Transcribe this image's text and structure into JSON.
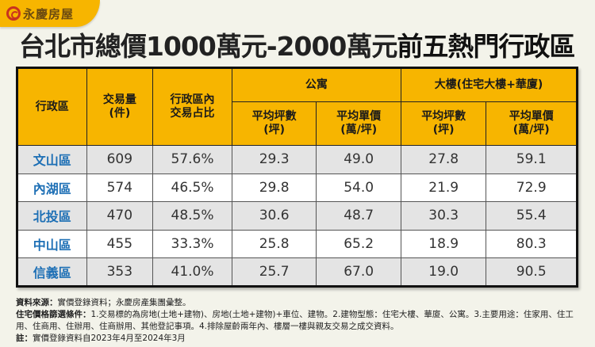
{
  "brand": {
    "name": "永慶房屋",
    "accent": "#f7b500"
  },
  "title": {
    "normal": "台北市總價1000萬元-2000萬元",
    "bold": "前五熱門行政區"
  },
  "table": {
    "headers": {
      "district": "行政區",
      "volume": [
        "交易量",
        "(件)"
      ],
      "share": [
        "行政區內",
        "交易占比"
      ],
      "group_apartment": "公寓",
      "group_building": "大樓(住宅大樓+華廈)",
      "avg_area": [
        "平均坪數",
        "(坪)"
      ],
      "avg_price": [
        "平均單價",
        "(萬/坪)"
      ]
    },
    "rows": [
      {
        "district": "文山區",
        "volume": "609",
        "share": "57.6%",
        "apt_area": "29.3",
        "apt_price": "49.0",
        "bld_area": "27.8",
        "bld_price": "59.1"
      },
      {
        "district": "內湖區",
        "volume": "574",
        "share": "46.5%",
        "apt_area": "29.8",
        "apt_price": "54.0",
        "bld_area": "21.9",
        "bld_price": "72.9"
      },
      {
        "district": "北投區",
        "volume": "470",
        "share": "48.5%",
        "apt_area": "30.6",
        "apt_price": "48.7",
        "bld_area": "30.3",
        "bld_price": "55.4"
      },
      {
        "district": "中山區",
        "volume": "455",
        "share": "33.3%",
        "apt_area": "25.8",
        "apt_price": "65.2",
        "bld_area": "18.9",
        "bld_price": "80.3"
      },
      {
        "district": "信義區",
        "volume": "353",
        "share": "41.0%",
        "apt_area": "25.7",
        "apt_price": "67.0",
        "bld_area": "19.0",
        "bld_price": "90.5"
      }
    ]
  },
  "notes": {
    "source_label": "資料來源：",
    "source": "實價登錄資料；永慶房產集團彙整。",
    "criteria_label": "住宅價格篩選條件：",
    "criteria": "1.交易標的為房地(土地+建物)、房地(土地+建物)+車位、建物。2.建物型態：住宅大樓、華廈、公寓。3.主要用途：住家用、住工用、住商用、住辦用、住商辦用、其他登記事項。4.排除屋齡兩年內、樓層一樓與親友交易之成交資料。",
    "note_label": "註：",
    "note": "實價登錄資料自2023年4月至2024年3月"
  }
}
